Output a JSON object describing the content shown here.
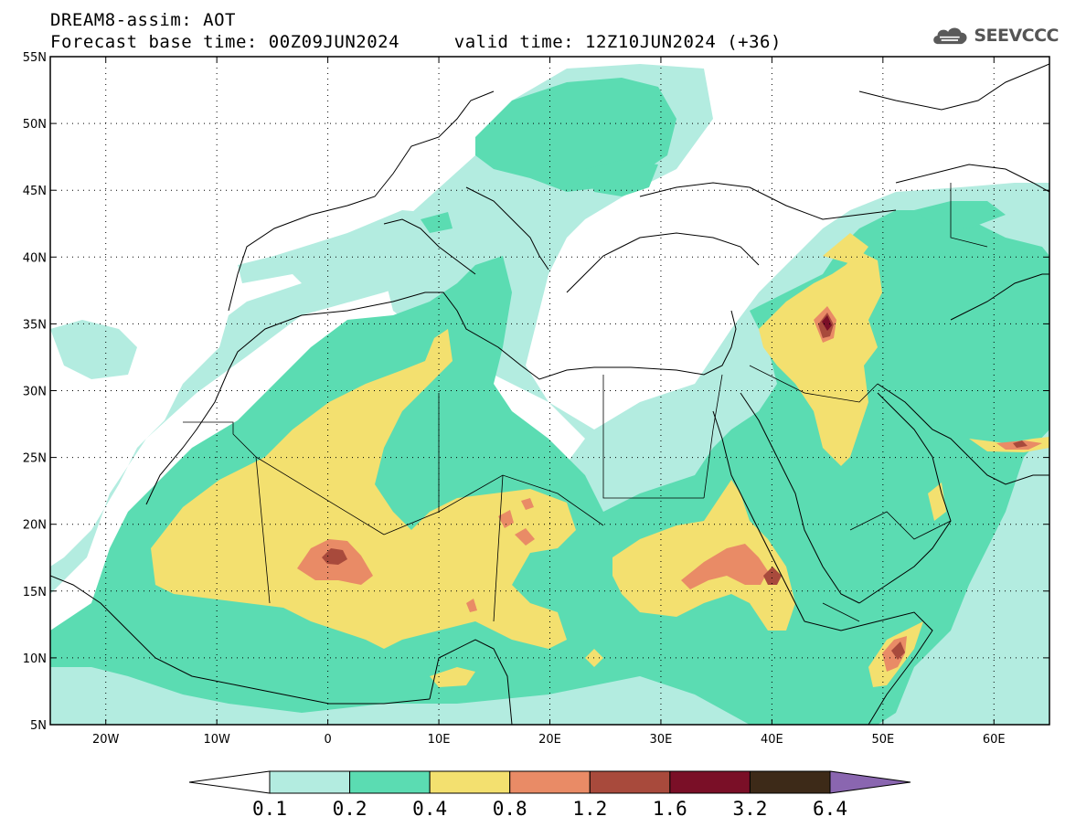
{
  "header": {
    "model_line": "DREAM8-assim: AOT",
    "base_time_label": "Forecast base time: 00Z09JUN2024",
    "valid_time_label": "valid time: 12Z10JUN2024 (+36)"
  },
  "logo": {
    "icon": "cloud-icon",
    "text": "SEEVCCC"
  },
  "map": {
    "type": "filled-contour-map",
    "lon_range": [
      -25,
      65
    ],
    "lat_range": [
      5,
      55
    ],
    "lat_ticks": [
      "5N",
      "10N",
      "15N",
      "20N",
      "25N",
      "30N",
      "35N",
      "40N",
      "45N",
      "50N",
      "55N"
    ],
    "lon_ticks": [
      "20W",
      "10W",
      "0",
      "10E",
      "20E",
      "30E",
      "40E",
      "50E",
      "60E"
    ],
    "grid": "dotted"
  },
  "colorbar": {
    "levels": [
      "0.1",
      "0.2",
      "0.4",
      "0.8",
      "1.2",
      "1.6",
      "3.2",
      "6.4"
    ],
    "colors": [
      "#b3ece0",
      "#5bdcb2",
      "#f3e06f",
      "#e98b66",
      "#a84a3c",
      "#7a0f27",
      "#3d2a18",
      "#8a66b0"
    ],
    "under_color": "#ffffff",
    "over_color": "#8a66b0"
  }
}
